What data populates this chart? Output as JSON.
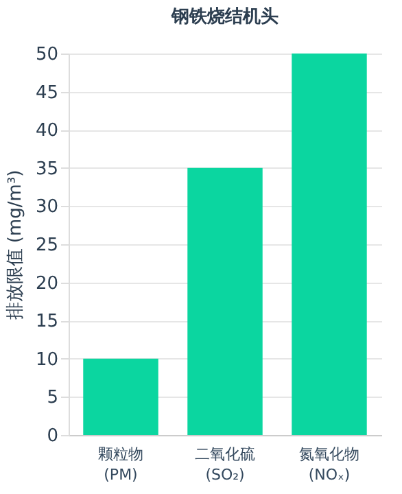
{
  "chart_data": {
    "type": "bar",
    "title": "钢铁烧结机头",
    "ylabel": "排放限值 (mg/m³)",
    "categories": [
      "颗粒物 (PM)",
      "二氧化硫 (SO₂)",
      "氮氧化物 (NOₓ)"
    ],
    "values": [
      10,
      35,
      50
    ],
    "color": "#0bd6a0",
    "ylim": [
      0,
      50
    ],
    "yticks": [
      0,
      5,
      10,
      15,
      20,
      25,
      30,
      35,
      40,
      45,
      50
    ],
    "grid": "y"
  }
}
